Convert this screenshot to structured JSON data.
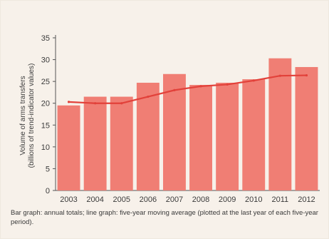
{
  "chart_data": {
    "type": "bar",
    "categories": [
      "2003",
      "2004",
      "2005",
      "2006",
      "2007",
      "2008",
      "2009",
      "2010",
      "2011",
      "2012"
    ],
    "series": [
      {
        "type": "bar",
        "values": [
          19.5,
          21.5,
          21.5,
          24.7,
          26.7,
          24.2,
          24.7,
          25.5,
          30.3,
          28.3
        ]
      },
      {
        "type": "line",
        "values": [
          20.3,
          20.0,
          20.0,
          21.5,
          23.0,
          23.9,
          24.3,
          25.2,
          26.3,
          26.4
        ]
      }
    ],
    "ylabel": "Volume of arms transfers",
    "ylabel2": "(billions of trend-indicator values)",
    "ylim": [
      0,
      35
    ],
    "yticks": [
      0,
      5,
      10,
      15,
      20,
      25,
      30,
      35
    ],
    "grid": false,
    "colors": {
      "bar": "#f07e74",
      "line": "#e2413a",
      "axis": "#555555"
    }
  },
  "caption": "Bar graph: annual totals; line graph: five-year moving average (plotted at the last year of each five-year period)."
}
